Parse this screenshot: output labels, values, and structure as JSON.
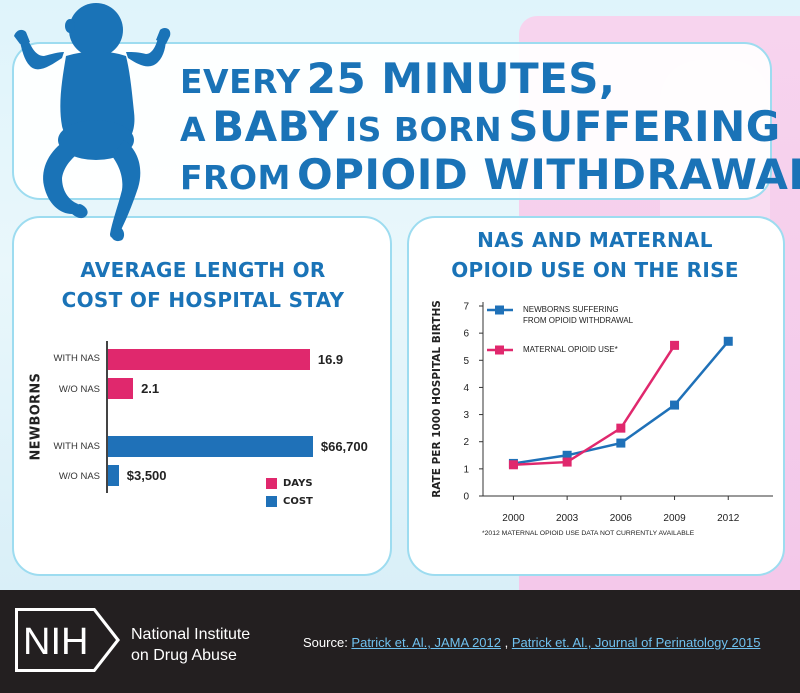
{
  "headline": {
    "line1_small": "EVERY",
    "line1_large": "25 MINUTES,",
    "line2_small_a": "A",
    "line2_large_a": "BABY",
    "line2_small_b": "IS BORN",
    "line2_large_b": "SUFFERING",
    "line3_small": "FROM",
    "line3_large": "OPIOID WITHDRAWAL."
  },
  "colors": {
    "brand_blue": "#1a73b7",
    "bar_blue": "#1f71b8",
    "magenta": "#e0286d",
    "panel_border": "#9ddcf0",
    "footer_bg": "#231f20",
    "link": "#6fc1ef"
  },
  "left_chart": {
    "title_line1": "AVERAGE LENGTH OR",
    "title_line2": "COST OF HOSPITAL STAY",
    "y_group_label": "NEWBORNS",
    "legend": [
      {
        "label": "DAYS",
        "color": "#e0286d"
      },
      {
        "label": "COST",
        "color": "#1f71b8"
      }
    ]
  },
  "right_chart": {
    "title_line1": "NAS AND MATERNAL",
    "title_line2": "OPIOID USE ON THE RISE",
    "footnote": "*2012 MATERNAL OPIOID USE DATA NOT CURRENTLY AVAILABLE"
  },
  "chart_data": [
    {
      "type": "bar",
      "orientation": "horizontal",
      "title": "AVERAGE LENGTH OR COST OF HOSPITAL STAY",
      "ylabel": "NEWBORNS",
      "groups": [
        {
          "series": "DAYS",
          "color": "#e0286d",
          "categories": [
            "WITH NAS",
            "W/O NAS"
          ],
          "values": [
            16.9,
            2.1
          ],
          "labels": [
            "16.9",
            "2.1"
          ],
          "max": 18
        },
        {
          "series": "COST",
          "color": "#1f71b8",
          "categories": [
            "WITH NAS",
            "W/O NAS"
          ],
          "values": [
            66700,
            3500
          ],
          "labels": [
            "$66,700",
            "$3,500"
          ],
          "max": 70000
        }
      ]
    },
    {
      "type": "line",
      "title": "NAS AND MATERNAL OPIOID USE ON THE RISE",
      "xlabel": "",
      "ylabel": "RATE PER 1000 HOSPITAL BIRTHS",
      "x": [
        2000,
        2003,
        2006,
        2009,
        2012
      ],
      "x_tick_labels": [
        "2000",
        "2003",
        "2006",
        "2009",
        "2012"
      ],
      "ylim": [
        0,
        7
      ],
      "y_ticks": [
        0,
        1,
        2,
        3,
        4,
        5,
        6,
        7
      ],
      "grid": false,
      "legend_position": "top-left",
      "series": [
        {
          "name": "NEWBORNS SUFFERING FROM OPIOID WITHDRAWAL",
          "legend_line1": "NEWBORNS SUFFERING",
          "legend_line2": "FROM OPIOID WITHDRAWAL",
          "color": "#1f71b8",
          "x": [
            2000,
            2003,
            2006,
            2009,
            2012
          ],
          "values": [
            1.2,
            1.5,
            1.95,
            3.35,
            5.7
          ]
        },
        {
          "name": "MATERNAL OPIOID USE*",
          "legend_line1": "MATERNAL OPIOID USE*",
          "legend_line2": "",
          "color": "#e0286d",
          "x": [
            2000,
            2003,
            2006,
            2009
          ],
          "values": [
            1.15,
            1.25,
            2.5,
            5.55
          ]
        }
      ]
    }
  ],
  "footer": {
    "logo_text": "NIH",
    "org_line1": "National Institute",
    "org_line2": "on Drug Abuse",
    "source_label": "Source: ",
    "source_link1": "Patrick et. Al., JAMA 2012",
    "source_sep": " , ",
    "source_link2": "Patrick et. Al., Journal of Perinatology 2015"
  }
}
